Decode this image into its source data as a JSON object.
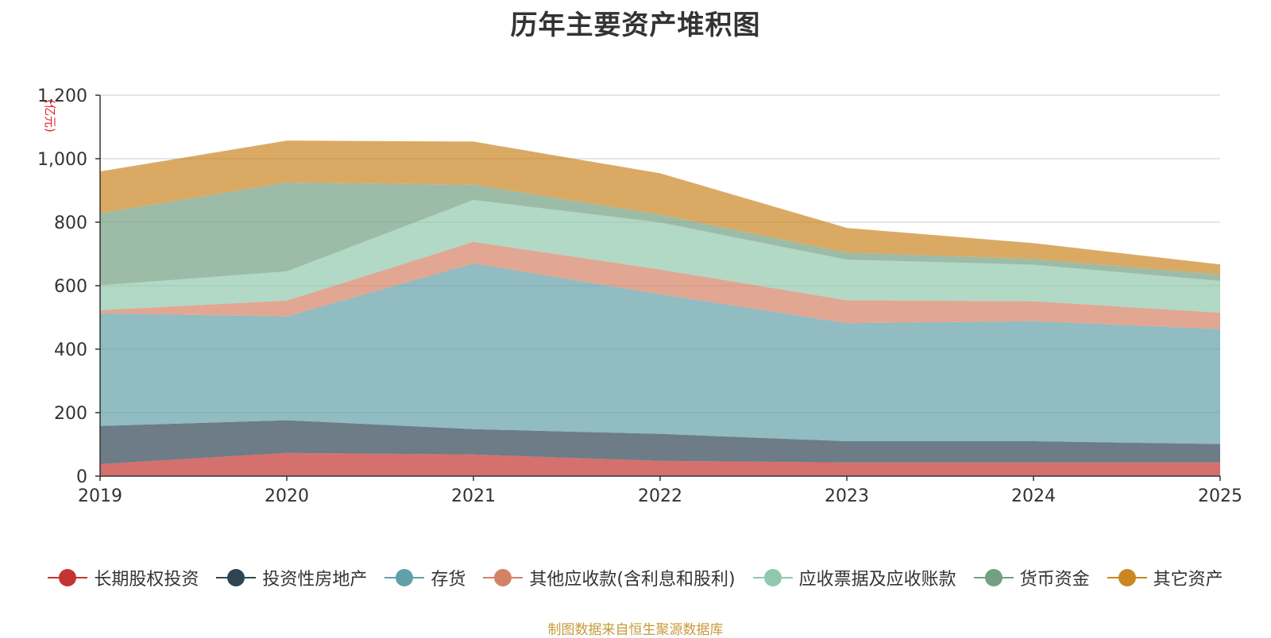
{
  "chart_data": {
    "type": "area",
    "stacked": true,
    "title": "历年主要资产堆积图",
    "ylabel": "(亿元)",
    "xlabel": "",
    "categories": [
      "2019",
      "2020",
      "2021",
      "2022",
      "2023",
      "2024",
      "2025"
    ],
    "ylim": [
      0,
      1200
    ],
    "yticks": [
      0,
      200,
      400,
      600,
      800,
      1000,
      1200
    ],
    "ytick_labels": [
      "0",
      "200",
      "400",
      "600",
      "800",
      "1,000",
      "1,200"
    ],
    "grid": true,
    "legend_position": "bottom",
    "series": [
      {
        "name": "长期股权投资",
        "color": "#c23531",
        "values": [
          38,
          73,
          68,
          48,
          43,
          43,
          43
        ]
      },
      {
        "name": "投资性房地产",
        "color": "#2f4554",
        "values": [
          120,
          103,
          80,
          85,
          67,
          67,
          58
        ]
      },
      {
        "name": "存货",
        "color": "#61a0a8",
        "values": [
          355,
          327,
          522,
          440,
          372,
          378,
          362
        ]
      },
      {
        "name": "其他应收款(含利息和股利)",
        "color": "#d48265",
        "values": [
          10,
          50,
          68,
          78,
          72,
          63,
          52
        ]
      },
      {
        "name": "应收票据及应收账款",
        "color": "#91c7ae",
        "values": [
          78,
          92,
          132,
          148,
          128,
          115,
          100
        ]
      },
      {
        "name": "货币资金",
        "color": "#749f83",
        "values": [
          227,
          280,
          48,
          25,
          22,
          18,
          20
        ]
      },
      {
        "name": "其它资产",
        "color": "#ca8622",
        "values": [
          132,
          132,
          136,
          130,
          78,
          50,
          32
        ]
      }
    ],
    "source_note": "制图数据来自恒生聚源数据库"
  }
}
